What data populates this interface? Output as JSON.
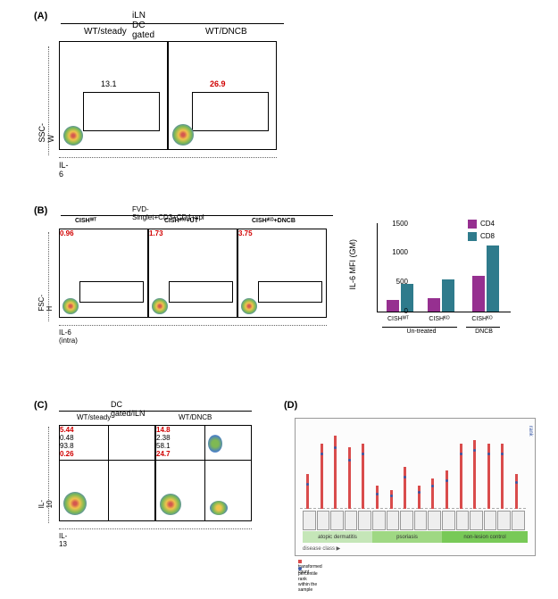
{
  "panelA": {
    "label": "(A)",
    "header": "iLN DC gated",
    "columns": [
      "WT/steady",
      "WT/DNCB"
    ],
    "y_axis": "SSC-W",
    "x_axis": "IL-6",
    "plots": [
      {
        "gate_value": "13.1",
        "value_color": "#000000"
      },
      {
        "gate_value": "26.9",
        "value_color": "#d00000"
      }
    ]
  },
  "panelB": {
    "label": "(B)",
    "header": "FVD-Singlet+CD3+CD4+spl",
    "columns": [
      "CISHᵂᵀ",
      "CISHᶦᴷᴼ+UT",
      "CISHᶦᴷᴼ+DNCB"
    ],
    "y_axis": "FSC-H",
    "x_axis": "IL-6 (intra)",
    "plots": [
      {
        "gate_value": "0.96"
      },
      {
        "gate_value": "1.73"
      },
      {
        "gate_value": "3.75"
      }
    ],
    "bar_chart": {
      "type": "bar",
      "y_label": "IL-6 MFI (GM)",
      "y_max": 1500,
      "y_ticks": [
        0,
        500,
        1000,
        1500
      ],
      "series": [
        {
          "name": "CD4",
          "color": "#963090"
        },
        {
          "name": "CD8",
          "color": "#2f7b8c"
        }
      ],
      "categories": [
        "CISHᵂᵀ",
        "CISHᴷᴼ",
        "CISHᴷᴼ"
      ],
      "group_labels": [
        "Un-treated",
        "DNCB"
      ],
      "group_spans": [
        2,
        1
      ],
      "values": {
        "CD4": [
          200,
          230,
          600
        ],
        "CD8": [
          470,
          540,
          1110
        ]
      }
    }
  },
  "panelC": {
    "label": "(C)",
    "header": "DC gated/iLN",
    "columns": [
      "WT/steady",
      "WT/DNCB"
    ],
    "y_axis": "IL-10",
    "x_axis": "IL-13",
    "plots": [
      {
        "q1": "5.44",
        "q2": "0.48",
        "q3": "93.8",
        "q4": "0.26",
        "q1_color": "#d00000",
        "q4_color": "#d00000"
      },
      {
        "q1": "14.8",
        "q2": "2.38",
        "q3": "58.1",
        "q4": "24.7",
        "q1_color": "#d00000",
        "q4_color": "#d00000"
      }
    ]
  },
  "panelD": {
    "label": "(D)",
    "chart": {
      "bar_color": "#d94c4c",
      "dot_color": "#3a5aa8",
      "y_right_label": "rank",
      "x_axis_label": "disease class ▶",
      "legend": [
        "transformed count",
        "percentile rank within the sample"
      ],
      "categories": [
        {
          "name": "atopic dermatitis",
          "color": "#c5e6b8",
          "items": 5
        },
        {
          "name": "psoriasis",
          "color": "#9fd883",
          "items": 5
        },
        {
          "name": "non-lesion control",
          "color": "#78c957",
          "items": 6
        }
      ],
      "bar_values": [
        0.45,
        0.85,
        0.95,
        0.8,
        0.85,
        0.3,
        0.25,
        0.55,
        0.3,
        0.4,
        0.5,
        0.85,
        0.9,
        0.85,
        0.85,
        0.45
      ],
      "dot_values": [
        0.3,
        0.7,
        0.78,
        0.62,
        0.7,
        0.18,
        0.15,
        0.4,
        0.2,
        0.28,
        0.35,
        0.7,
        0.75,
        0.7,
        0.7,
        0.32
      ]
    }
  }
}
